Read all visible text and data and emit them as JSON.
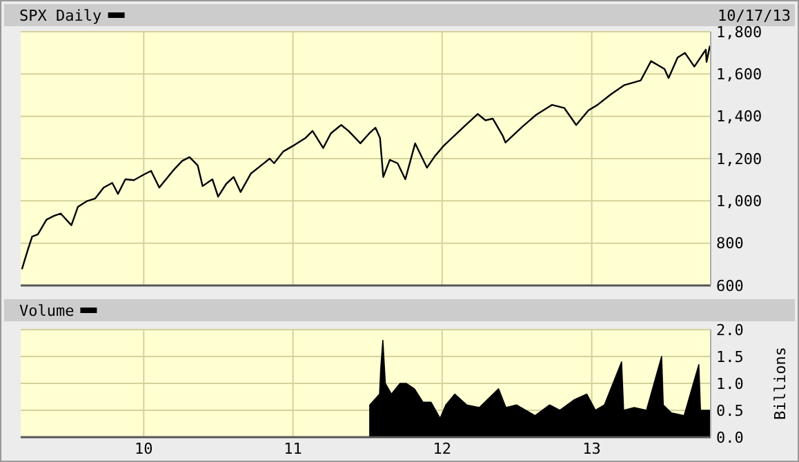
{
  "chart_data": [
    {
      "type": "line",
      "legend": "top left",
      "grid": true,
      "tick_labels": "y",
      "annotations": [
        "10/17/13"
      ],
      "xlim": [
        "2009-03-06",
        "2013-10-19"
      ],
      "xticks": [
        {
          "value": "2010-01-01",
          "label": null
        },
        {
          "value": "2011-01-01",
          "label": null
        },
        {
          "value": "2012-01-01",
          "label": null
        },
        {
          "value": "2013-01-01",
          "label": null
        }
      ],
      "ylim": [
        600,
        1800
      ],
      "yticks": [
        {
          "value": 600,
          "label": "600"
        },
        {
          "value": 800,
          "label": "800"
        },
        {
          "value": 1000,
          "label": "1,000"
        },
        {
          "value": 1200,
          "label": "1,200"
        },
        {
          "value": 1400,
          "label": "1,400"
        },
        {
          "value": 1600,
          "label": "1,600"
        },
        {
          "value": 1800,
          "label": "1,800"
        }
      ],
      "x": [
        "2009-03-09",
        "2009-03-23",
        "2009-04-03",
        "2009-04-17",
        "2009-05-08",
        "2009-05-26",
        "2009-06-12",
        "2009-07-08",
        "2009-07-24",
        "2009-08-14",
        "2009-09-04",
        "2009-09-25",
        "2009-10-16",
        "2009-10-30",
        "2009-11-17",
        "2009-12-08",
        "2010-01-01",
        "2010-01-19",
        "2010-02-08",
        "2010-03-15",
        "2010-04-05",
        "2010-04-23",
        "2010-05-13",
        "2010-05-25",
        "2010-06-18",
        "2010-07-02",
        "2010-07-22",
        "2010-08-09",
        "2010-08-26",
        "2010-09-20",
        "2010-10-18",
        "2010-11-05",
        "2010-11-16",
        "2010-12-08",
        "2010-12-31",
        "2011-02-01",
        "2011-02-18",
        "2011-03-16",
        "2011-04-04",
        "2011-04-29",
        "2011-05-17",
        "2011-06-15",
        "2011-07-07",
        "2011-07-22",
        "2011-08-02",
        "2011-08-10",
        "2011-08-26",
        "2011-09-14",
        "2011-10-03",
        "2011-10-27",
        "2011-11-25",
        "2011-12-14",
        "2012-01-04",
        "2012-02-24",
        "2012-03-28",
        "2012-04-16",
        "2012-05-04",
        "2012-05-28",
        "2012-06-04",
        "2012-07-16",
        "2012-08-18",
        "2012-09-26",
        "2012-10-26",
        "2012-11-24",
        "2012-12-24",
        "2013-01-15",
        "2013-02-17",
        "2013-03-22",
        "2013-05-01",
        "2013-05-26",
        "2013-06-28",
        "2013-07-08",
        "2013-07-30",
        "2013-08-17",
        "2013-09-09",
        "2013-10-07",
        "2013-10-09",
        "2013-10-17"
      ],
      "series": [
        {
          "name": "SPX Daily",
          "color": "#000000",
          "values": [
            677,
            766,
            831,
            842,
            911,
            929,
            940,
            885,
            972,
            998,
            1011,
            1063,
            1085,
            1033,
            1102,
            1098,
            1124,
            1142,
            1063,
            1146,
            1189,
            1207,
            1168,
            1070,
            1102,
            1020,
            1081,
            1113,
            1042,
            1129,
            1172,
            1200,
            1178,
            1233,
            1259,
            1298,
            1331,
            1250,
            1320,
            1359,
            1331,
            1272,
            1320,
            1346,
            1298,
            1113,
            1194,
            1178,
            1102,
            1272,
            1157,
            1211,
            1259,
            1352,
            1411,
            1381,
            1389,
            1309,
            1276,
            1352,
            1407,
            1454,
            1439,
            1359,
            1428,
            1454,
            1504,
            1548,
            1570,
            1661,
            1624,
            1581,
            1678,
            1700,
            1635,
            1715,
            1657,
            1733
          ]
        }
      ]
    },
    {
      "type": "area",
      "legend": "top left",
      "grid": true,
      "ylabel": "Billions",
      "xlim": [
        "2009-03-06",
        "2013-10-19"
      ],
      "xticks": [
        {
          "value": "2010-01-01",
          "label": "10"
        },
        {
          "value": "2011-01-01",
          "label": "11"
        },
        {
          "value": "2012-01-01",
          "label": "12"
        },
        {
          "value": "2013-01-01",
          "label": "13"
        }
      ],
      "ylim": [
        0,
        2
      ],
      "yticks": [
        {
          "value": 0,
          "label": "0.0"
        },
        {
          "value": 0.5,
          "label": "0.5"
        },
        {
          "value": 1,
          "label": "1.0"
        },
        {
          "value": 1.5,
          "label": "1.5"
        },
        {
          "value": 2,
          "label": "2.0"
        }
      ],
      "x": [
        "2011-07-08",
        "2011-08-01",
        "2011-08-04",
        "2011-08-09",
        "2011-08-15",
        "2011-08-30",
        "2011-09-20",
        "2011-10-05",
        "2011-10-25",
        "2011-11-15",
        "2011-12-05",
        "2011-12-27",
        "2012-01-10",
        "2012-02-01",
        "2012-03-01",
        "2012-04-01",
        "2012-05-18",
        "2012-06-05",
        "2012-07-01",
        "2012-08-15",
        "2012-09-20",
        "2012-10-15",
        "2012-11-20",
        "2012-12-20",
        "2013-01-10",
        "2013-02-01",
        "2013-03-15",
        "2013-03-20",
        "2013-04-15",
        "2013-05-15",
        "2013-06-21",
        "2013-06-25",
        "2013-07-15",
        "2013-08-15",
        "2013-09-20",
        "2013-09-24",
        "2013-10-17"
      ],
      "series": [
        {
          "name": "Volume",
          "color": "#000000",
          "values": [
            0.6,
            0.8,
            1.3,
            1.8,
            1.0,
            0.8,
            1.0,
            1.0,
            0.9,
            0.65,
            0.65,
            0.35,
            0.6,
            0.8,
            0.6,
            0.55,
            0.9,
            0.55,
            0.6,
            0.4,
            0.6,
            0.5,
            0.7,
            0.8,
            0.5,
            0.6,
            1.4,
            0.5,
            0.55,
            0.5,
            1.5,
            0.6,
            0.45,
            0.4,
            1.35,
            0.5,
            0.5
          ]
        }
      ]
    }
  ]
}
